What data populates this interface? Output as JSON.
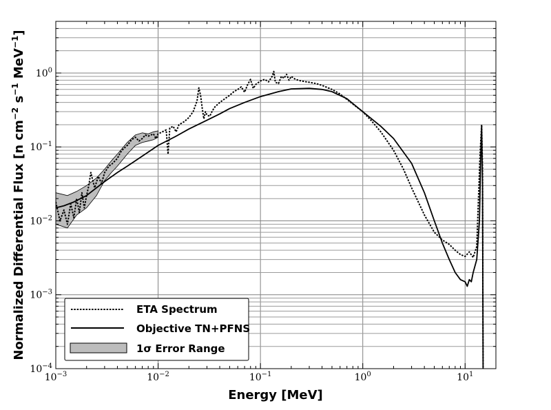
{
  "chart_data": {
    "type": "line",
    "xlabel": "Energy [MeV]",
    "ylabel_main": "Normalized Differential Flux [n cm",
    "ylabel_sup1": "−2",
    "ylabel_mid": " s",
    "ylabel_sup2": "−1",
    "ylabel_mid2": " MeV",
    "ylabel_sup3": "−1",
    "ylabel_end": "]",
    "xscale": "log",
    "yscale": "log",
    "xlim": [
      0.001,
      20
    ],
    "ylim": [
      0.0001,
      5
    ],
    "grid": true,
    "legend_position": "lower-left",
    "x_ticks": [
      {
        "base": "10",
        "exp": "−3",
        "value": 0.001
      },
      {
        "base": "10",
        "exp": "−2",
        "value": 0.01
      },
      {
        "base": "10",
        "exp": "−1",
        "value": 0.1
      },
      {
        "base": "10",
        "exp": "0",
        "value": 1
      },
      {
        "base": "10",
        "exp": "1",
        "value": 10
      }
    ],
    "y_ticks": [
      {
        "base": "10",
        "exp": "−4",
        "value": 0.0001
      },
      {
        "base": "10",
        "exp": "−3",
        "value": 0.001
      },
      {
        "base": "10",
        "exp": "−2",
        "value": 0.01
      },
      {
        "base": "10",
        "exp": "−1",
        "value": 0.1
      },
      {
        "base": "10",
        "exp": "0",
        "value": 1
      }
    ],
    "legend": [
      {
        "label": "ETA Spectrum",
        "style": "dotted"
      },
      {
        "label": "Objective TN+PFNS",
        "style": "solid"
      },
      {
        "label": "1σ Error Range",
        "style": "band"
      }
    ],
    "series": [
      {
        "name": "ETA Spectrum",
        "style": "dotted",
        "points": [
          [
            0.001,
            0.018
          ],
          [
            0.0011,
            0.01
          ],
          [
            0.0012,
            0.014
          ],
          [
            0.0013,
            0.009
          ],
          [
            0.0014,
            0.017
          ],
          [
            0.0015,
            0.011
          ],
          [
            0.0016,
            0.02
          ],
          [
            0.0017,
            0.013
          ],
          [
            0.0018,
            0.024
          ],
          [
            0.0019,
            0.015
          ],
          [
            0.002,
            0.022
          ],
          [
            0.0021,
            0.03
          ],
          [
            0.0022,
            0.045
          ],
          [
            0.0023,
            0.035
          ],
          [
            0.0024,
            0.028
          ],
          [
            0.0026,
            0.04
          ],
          [
            0.0028,
            0.032
          ],
          [
            0.003,
            0.045
          ],
          [
            0.0033,
            0.055
          ],
          [
            0.0036,
            0.06
          ],
          [
            0.004,
            0.07
          ],
          [
            0.0043,
            0.085
          ],
          [
            0.0046,
            0.095
          ],
          [
            0.005,
            0.105
          ],
          [
            0.0055,
            0.125
          ],
          [
            0.006,
            0.135
          ],
          [
            0.0065,
            0.12
          ],
          [
            0.007,
            0.13
          ],
          [
            0.0075,
            0.145
          ],
          [
            0.008,
            0.14
          ],
          [
            0.009,
            0.15
          ],
          [
            0.0095,
            0.13
          ],
          [
            0.01,
            0.15
          ],
          [
            0.011,
            0.16
          ],
          [
            0.012,
            0.17
          ],
          [
            0.0125,
            0.08
          ],
          [
            0.013,
            0.18
          ],
          [
            0.014,
            0.19
          ],
          [
            0.015,
            0.16
          ],
          [
            0.016,
            0.2
          ],
          [
            0.018,
            0.22
          ],
          [
            0.02,
            0.25
          ],
          [
            0.022,
            0.3
          ],
          [
            0.024,
            0.42
          ],
          [
            0.025,
            0.63
          ],
          [
            0.026,
            0.5
          ],
          [
            0.027,
            0.33
          ],
          [
            0.028,
            0.24
          ],
          [
            0.029,
            0.3
          ],
          [
            0.03,
            0.27
          ],
          [
            0.032,
            0.26
          ],
          [
            0.034,
            0.31
          ],
          [
            0.036,
            0.35
          ],
          [
            0.04,
            0.4
          ],
          [
            0.045,
            0.45
          ],
          [
            0.05,
            0.5
          ],
          [
            0.055,
            0.56
          ],
          [
            0.06,
            0.6
          ],
          [
            0.065,
            0.65
          ],
          [
            0.07,
            0.55
          ],
          [
            0.075,
            0.7
          ],
          [
            0.08,
            0.82
          ],
          [
            0.085,
            0.62
          ],
          [
            0.09,
            0.7
          ],
          [
            0.1,
            0.78
          ],
          [
            0.11,
            0.82
          ],
          [
            0.12,
            0.76
          ],
          [
            0.13,
            0.9
          ],
          [
            0.135,
            1.05
          ],
          [
            0.14,
            0.75
          ],
          [
            0.15,
            0.72
          ],
          [
            0.16,
            0.9
          ],
          [
            0.17,
            0.85
          ],
          [
            0.18,
            0.96
          ],
          [
            0.19,
            0.8
          ],
          [
            0.2,
            0.9
          ],
          [
            0.22,
            0.82
          ],
          [
            0.25,
            0.78
          ],
          [
            0.3,
            0.75
          ],
          [
            0.35,
            0.72
          ],
          [
            0.4,
            0.68
          ],
          [
            0.5,
            0.6
          ],
          [
            0.6,
            0.52
          ],
          [
            0.8,
            0.38
          ],
          [
            1.0,
            0.3
          ],
          [
            1.2,
            0.23
          ],
          [
            1.5,
            0.16
          ],
          [
            2.0,
            0.09
          ],
          [
            2.5,
            0.05
          ],
          [
            3.0,
            0.028
          ],
          [
            4.0,
            0.012
          ],
          [
            5.0,
            0.007
          ],
          [
            6.0,
            0.0055
          ],
          [
            7.0,
            0.0048
          ],
          [
            8.0,
            0.004
          ],
          [
            9.0,
            0.0035
          ],
          [
            10.0,
            0.0033
          ],
          [
            11.0,
            0.0038
          ],
          [
            12.0,
            0.0032
          ],
          [
            13.0,
            0.0045
          ],
          [
            14.0,
            0.08
          ],
          [
            14.5,
            0.2
          ],
          [
            14.8,
            0.05
          ],
          [
            15.0,
            0.0001
          ]
        ]
      },
      {
        "name": "Objective TN+PFNS",
        "style": "solid",
        "points": [
          [
            0.001,
            0.015
          ],
          [
            0.0012,
            0.016
          ],
          [
            0.0015,
            0.018
          ],
          [
            0.002,
            0.022
          ],
          [
            0.0025,
            0.028
          ],
          [
            0.003,
            0.034
          ],
          [
            0.004,
            0.045
          ],
          [
            0.005,
            0.055
          ],
          [
            0.006,
            0.065
          ],
          [
            0.008,
            0.085
          ],
          [
            0.01,
            0.105
          ],
          [
            0.015,
            0.14
          ],
          [
            0.02,
            0.175
          ],
          [
            0.03,
            0.23
          ],
          [
            0.04,
            0.28
          ],
          [
            0.05,
            0.33
          ],
          [
            0.07,
            0.4
          ],
          [
            0.1,
            0.48
          ],
          [
            0.15,
            0.56
          ],
          [
            0.2,
            0.61
          ],
          [
            0.3,
            0.62
          ],
          [
            0.4,
            0.6
          ],
          [
            0.5,
            0.56
          ],
          [
            0.7,
            0.45
          ],
          [
            1.0,
            0.3
          ],
          [
            1.5,
            0.19
          ],
          [
            2.0,
            0.13
          ],
          [
            3.0,
            0.06
          ],
          [
            4.0,
            0.024
          ],
          [
            5.0,
            0.01
          ],
          [
            6.0,
            0.005
          ],
          [
            7.0,
            0.003
          ],
          [
            8.0,
            0.002
          ],
          [
            9.0,
            0.0016
          ],
          [
            10.0,
            0.0015
          ],
          [
            10.5,
            0.0013
          ],
          [
            11.0,
            0.0016
          ],
          [
            11.5,
            0.0015
          ],
          [
            12.0,
            0.002
          ],
          [
            13.0,
            0.003
          ],
          [
            13.8,
            0.01
          ],
          [
            14.2,
            0.07
          ],
          [
            14.5,
            0.19
          ],
          [
            14.8,
            0.03
          ],
          [
            15.0,
            0.0001
          ]
        ]
      }
    ],
    "band": {
      "name": "1σ Error Range",
      "upper": [
        [
          0.001,
          0.024
        ],
        [
          0.0013,
          0.022
        ],
        [
          0.0016,
          0.025
        ],
        [
          0.002,
          0.03
        ],
        [
          0.0025,
          0.038
        ],
        [
          0.003,
          0.05
        ],
        [
          0.0035,
          0.065
        ],
        [
          0.004,
          0.08
        ],
        [
          0.005,
          0.115
        ],
        [
          0.006,
          0.145
        ],
        [
          0.007,
          0.155
        ],
        [
          0.008,
          0.15
        ],
        [
          0.009,
          0.16
        ],
        [
          0.01,
          0.165
        ]
      ],
      "lower": [
        [
          0.001,
          0.009
        ],
        [
          0.0013,
          0.008
        ],
        [
          0.0016,
          0.012
        ],
        [
          0.002,
          0.015
        ],
        [
          0.0025,
          0.022
        ],
        [
          0.003,
          0.035
        ],
        [
          0.0035,
          0.045
        ],
        [
          0.004,
          0.055
        ],
        [
          0.005,
          0.08
        ],
        [
          0.006,
          0.105
        ],
        [
          0.007,
          0.115
        ],
        [
          0.008,
          0.12
        ],
        [
          0.009,
          0.125
        ],
        [
          0.01,
          0.135
        ]
      ]
    }
  }
}
